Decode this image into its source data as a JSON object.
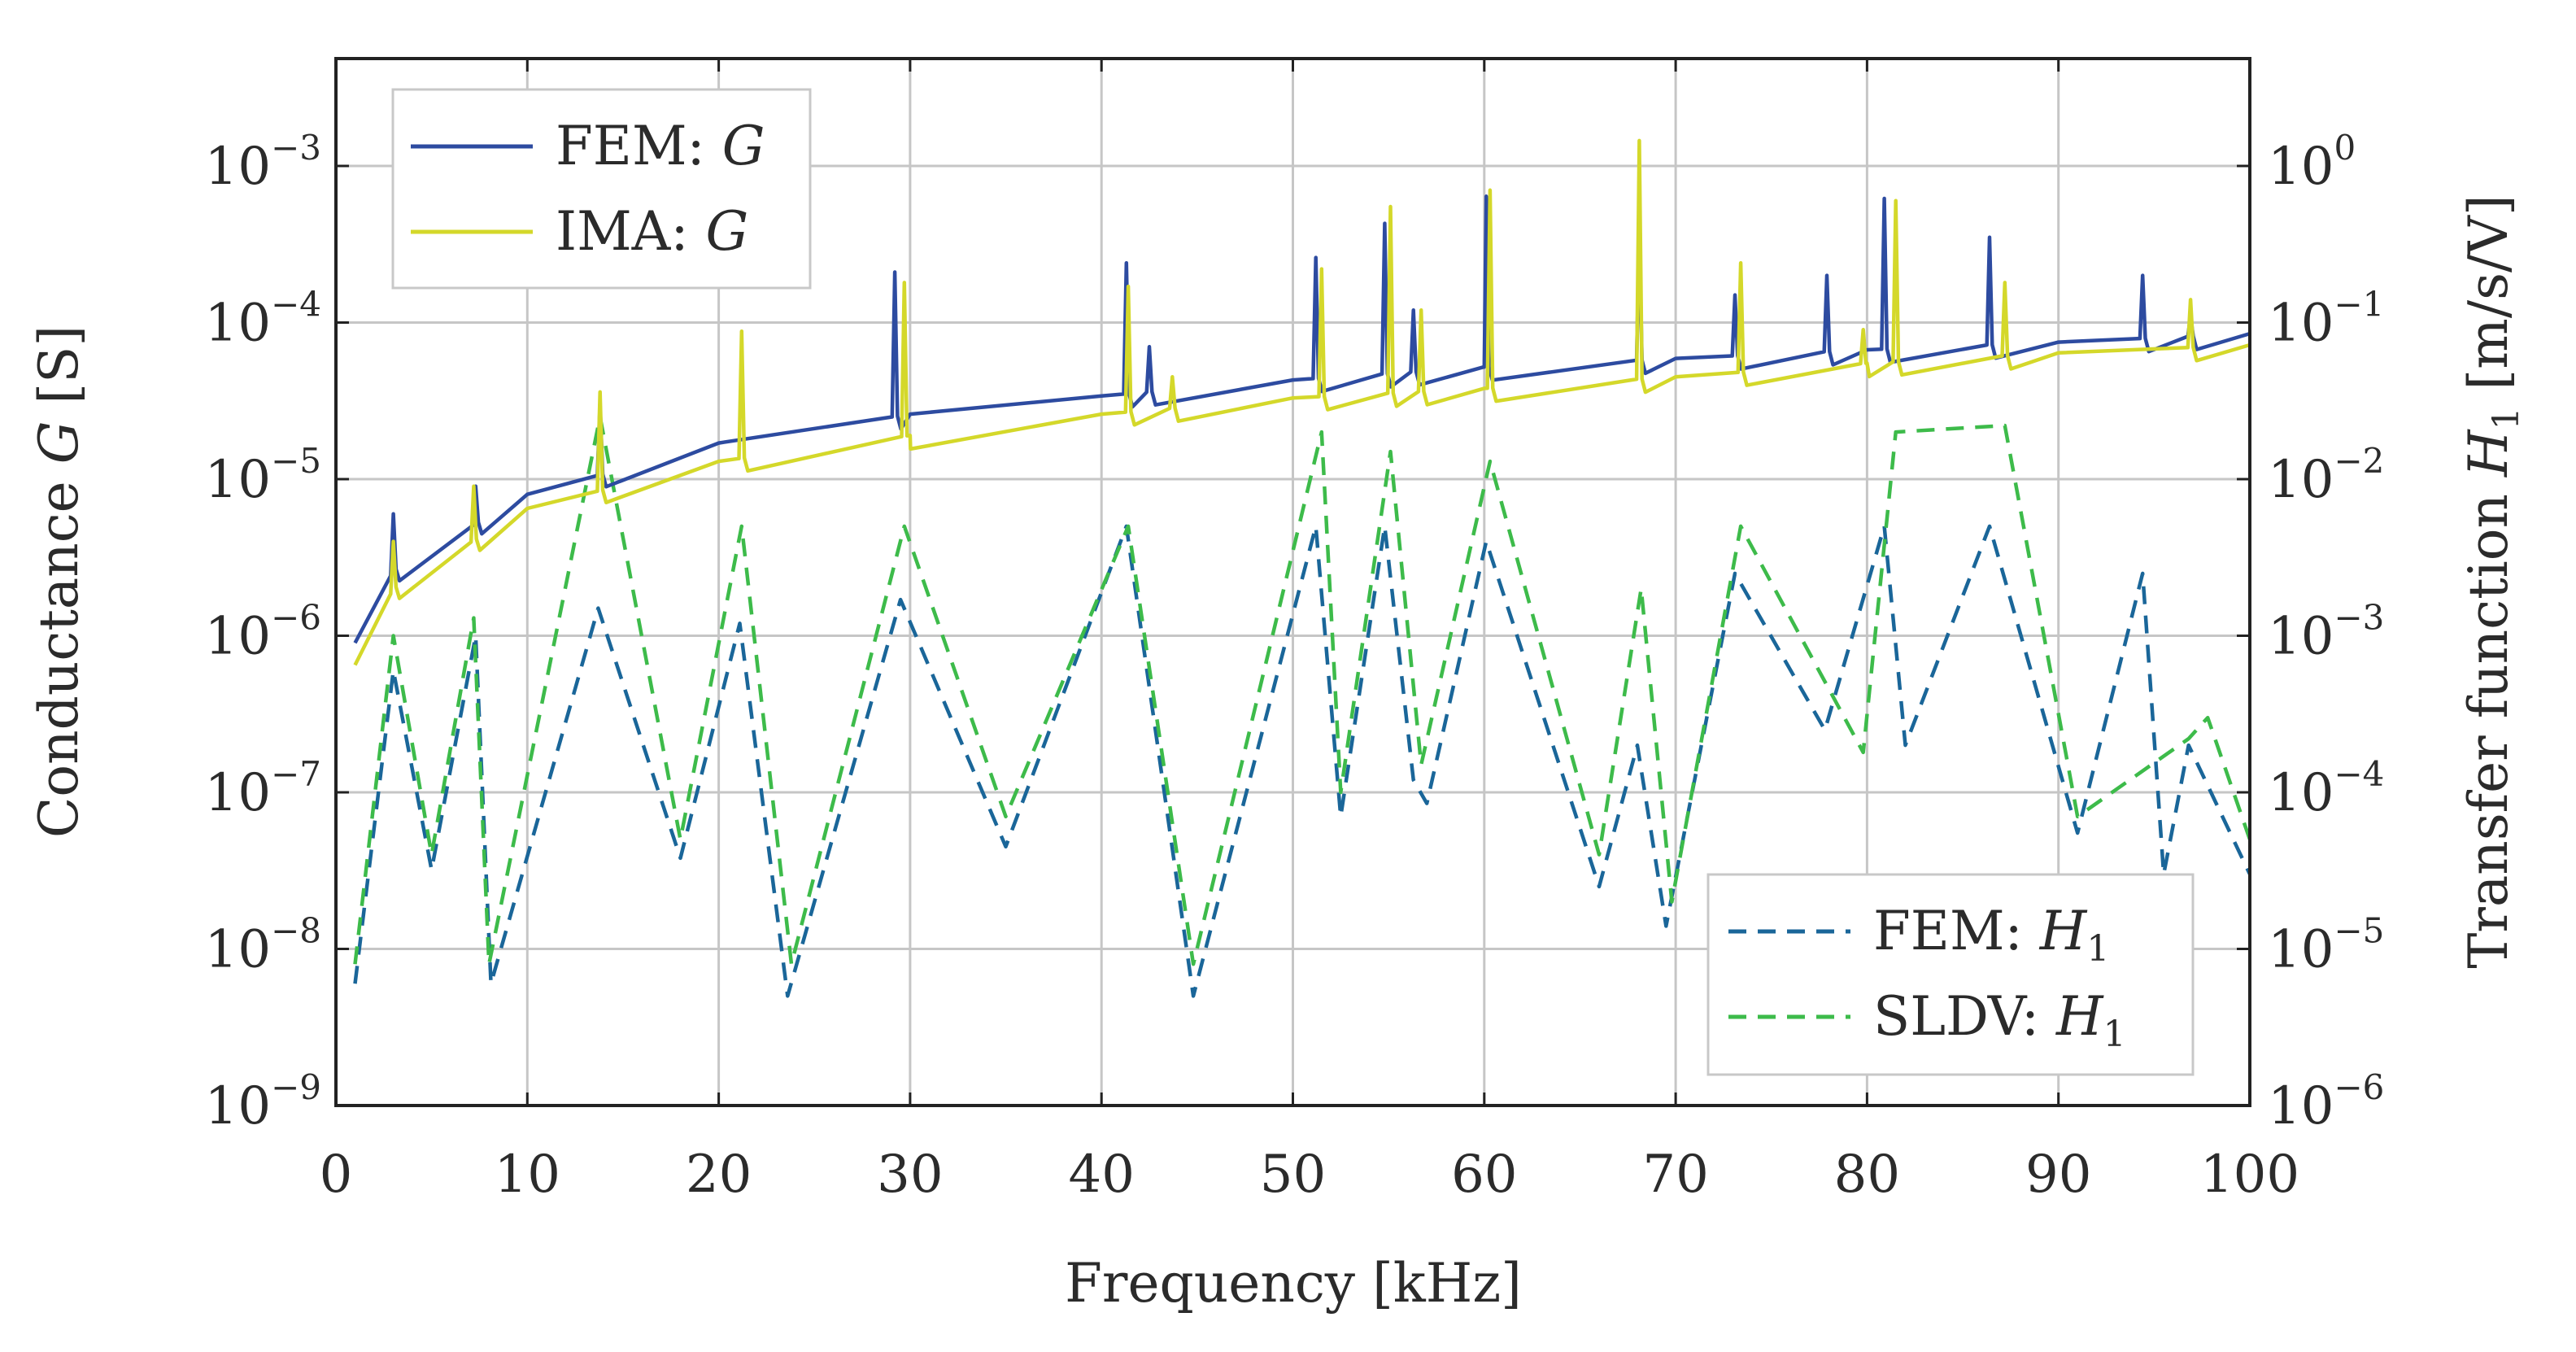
{
  "chart_data": {
    "type": "line",
    "xlabel": "Frequency [kHz]",
    "ylabel_left": "Conductance G [S]",
    "ylabel_right": "Transfer function H1 [m/s/V]",
    "xlim": [
      0,
      100
    ],
    "ylim_left": [
      1e-09,
      0.005
    ],
    "ylim_right": [
      1e-06,
      5
    ],
    "y_scale": "log",
    "grid": true,
    "x_ticks": [
      "0",
      "10",
      "20",
      "30",
      "40",
      "50",
      "60",
      "70",
      "80",
      "90",
      "100"
    ],
    "y_ticks_left": [
      {
        "base": "10",
        "exp": "−9"
      },
      {
        "base": "10",
        "exp": "−8"
      },
      {
        "base": "10",
        "exp": "−7"
      },
      {
        "base": "10",
        "exp": "−6"
      },
      {
        "base": "10",
        "exp": "−5"
      },
      {
        "base": "10",
        "exp": "−4"
      },
      {
        "base": "10",
        "exp": "−3"
      }
    ],
    "y_ticks_right": [
      {
        "base": "10",
        "exp": "−6"
      },
      {
        "base": "10",
        "exp": "−5"
      },
      {
        "base": "10",
        "exp": "−4"
      },
      {
        "base": "10",
        "exp": "−3"
      },
      {
        "base": "10",
        "exp": "−2"
      },
      {
        "base": "10",
        "exp": "−1"
      },
      {
        "base": "10",
        "exp": "0"
      }
    ],
    "legend_top_left": [
      {
        "prefix": "FEM: ",
        "symbol": "G",
        "sub": "",
        "color": "#2d4ba0",
        "dash": "solid"
      },
      {
        "prefix": "IMA: ",
        "symbol": "G",
        "sub": "",
        "color": "#d4d82a",
        "dash": "solid"
      }
    ],
    "legend_bottom_right": [
      {
        "prefix": "FEM: ",
        "symbol": "H",
        "sub": "1",
        "color": "#1a6699",
        "dash": "dashed"
      },
      {
        "prefix": "SLDV: ",
        "symbol": "H",
        "sub": "1",
        "color": "#3dbb4a",
        "dash": "dashed"
      }
    ],
    "series": [
      {
        "name": "FEM: G",
        "axis": "left",
        "color": "#2d4ba0",
        "style": "solid",
        "baseline": [
          [
            1,
            9e-07
          ],
          [
            3,
            2.6e-06
          ],
          [
            10,
            8e-06
          ],
          [
            20,
            1.7e-05
          ],
          [
            30,
            2.6e-05
          ],
          [
            40,
            3.4e-05
          ],
          [
            50,
            4.3e-05
          ],
          [
            60,
            5.2e-05
          ],
          [
            70,
            5.9e-05
          ],
          [
            80,
            6.7e-05
          ],
          [
            90,
            7.5e-05
          ],
          [
            100,
            8.5e-05
          ]
        ],
        "peaks": [
          [
            3,
            6e-06
          ],
          [
            7.3,
            9e-06
          ],
          [
            13.8,
            3e-05
          ],
          [
            29.2,
            0.00021
          ],
          [
            41.3,
            0.00024
          ],
          [
            42.5,
            7e-05
          ],
          [
            51.2,
            0.00026
          ],
          [
            54.8,
            0.00043
          ],
          [
            56.3,
            0.00012
          ],
          [
            60.1,
            0.00064
          ],
          [
            68.1,
            0.00038
          ],
          [
            73.1,
            0.00015
          ],
          [
            77.9,
            0.0002
          ],
          [
            80.9,
            0.00062
          ],
          [
            86.4,
            0.00035
          ],
          [
            94.4,
            0.0002
          ],
          [
            96.9,
            0.00011
          ]
        ]
      },
      {
        "name": "IMA: G",
        "axis": "left",
        "color": "#d4d82a",
        "style": "solid",
        "baseline": [
          [
            1,
            6.5e-07
          ],
          [
            3,
            2e-06
          ],
          [
            10,
            6.5e-06
          ],
          [
            20,
            1.3e-05
          ],
          [
            30,
            1.9e-05
          ],
          [
            40,
            2.6e-05
          ],
          [
            50,
            3.3e-05
          ],
          [
            60,
            3.8e-05
          ],
          [
            70,
            4.5e-05
          ],
          [
            80,
            5.5e-05
          ],
          [
            90,
            6.4e-05
          ],
          [
            100,
            7.2e-05
          ]
        ],
        "peaks": [
          [
            3,
            4e-06
          ],
          [
            7.2,
            9e-06
          ],
          [
            13.8,
            3.6e-05
          ],
          [
            21.2,
            8.8e-05
          ],
          [
            29.7,
            0.00018
          ],
          [
            41.4,
            0.00017
          ],
          [
            43.7,
            4.5e-05
          ],
          [
            51.5,
            0.00022
          ],
          [
            55.1,
            0.00055
          ],
          [
            56.7,
            0.00012
          ],
          [
            60.3,
            0.0007
          ],
          [
            68.1,
            0.00145
          ],
          [
            73.4,
            0.00024
          ],
          [
            79.8,
            9e-05
          ],
          [
            81.5,
            0.0006
          ],
          [
            87.2,
            0.00018
          ],
          [
            96.9,
            0.00014
          ]
        ]
      },
      {
        "name": "FEM: H1",
        "axis": "right",
        "color": "#1a6699",
        "style": "dashed",
        "baseline": [
          [
            1,
            6e-06
          ],
          [
            3,
            0.0006
          ],
          [
            5,
            3.2e-05
          ],
          [
            7.3,
            0.001
          ],
          [
            8.1,
            6e-06
          ],
          [
            13.7,
            0.0015
          ],
          [
            18,
            3.8e-05
          ],
          [
            21.1,
            0.0012
          ],
          [
            23.6,
            5e-06
          ],
          [
            29.5,
            0.0017
          ],
          [
            35,
            4.5e-05
          ],
          [
            41.3,
            0.005
          ],
          [
            44.8,
            5e-06
          ],
          [
            51.2,
            0.005
          ],
          [
            52.5,
            7e-05
          ],
          [
            54.8,
            0.005
          ],
          [
            56.3,
            0.00012
          ],
          [
            57,
            8.5e-05
          ],
          [
            60.1,
            0.004
          ],
          [
            66,
            2.5e-05
          ],
          [
            68,
            0.0002
          ],
          [
            69.5,
            1.4e-05
          ],
          [
            73.1,
            0.0025
          ],
          [
            77.8,
            0.00025
          ],
          [
            80.9,
            0.005
          ],
          [
            82,
            0.0002
          ],
          [
            86.4,
            0.005
          ],
          [
            91,
            5.5e-05
          ],
          [
            94.4,
            0.0025
          ],
          [
            95.5,
            3e-05
          ],
          [
            96.8,
            0.0002
          ],
          [
            100,
            3e-05
          ]
        ]
      },
      {
        "name": "SLDV: H1",
        "axis": "right",
        "color": "#3dbb4a",
        "style": "dashed",
        "baseline": [
          [
            1,
            8e-06
          ],
          [
            3,
            0.001
          ],
          [
            5,
            4e-05
          ],
          [
            7.2,
            0.0013
          ],
          [
            8,
            8e-06
          ],
          [
            13.8,
            0.025
          ],
          [
            18,
            5e-05
          ],
          [
            21.2,
            0.005
          ],
          [
            23.8,
            8e-06
          ],
          [
            29.7,
            0.005
          ],
          [
            35,
            7e-05
          ],
          [
            41.4,
            0.005
          ],
          [
            44.8,
            8e-06
          ],
          [
            51.5,
            0.02
          ],
          [
            52.5,
            0.0001
          ],
          [
            55.1,
            0.015
          ],
          [
            56.7,
            0.00015
          ],
          [
            60.3,
            0.013
          ],
          [
            66,
            4e-05
          ],
          [
            68.2,
            0.002
          ],
          [
            69.8,
            2e-05
          ],
          [
            73.4,
            0.005
          ],
          [
            79.8,
            0.00018
          ],
          [
            81.5,
            0.02
          ],
          [
            87.2,
            0.022
          ],
          [
            91,
            7e-05
          ],
          [
            96.8,
            0.00022
          ],
          [
            97.8,
            0.0003
          ],
          [
            100,
            5e-05
          ]
        ]
      }
    ]
  }
}
